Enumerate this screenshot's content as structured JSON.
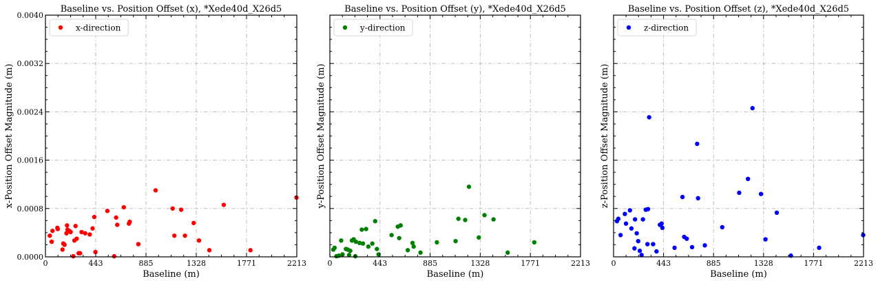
{
  "chart_data": [
    {
      "type": "scatter",
      "title": "Baseline vs. Position Offset (x), *Xede40d_X26d5",
      "xlabel": "Baseline (m)",
      "ylabel": "x-Position Offset Magnitude (m)",
      "xlim": [
        0,
        2213
      ],
      "ylim": [
        0,
        0.004
      ],
      "xticks": [
        "0",
        "443",
        "885",
        "1328",
        "1771",
        "2213"
      ],
      "yticks": [
        "0.0000",
        "0.0008",
        "0.0016",
        "0.0024",
        "0.0032",
        "0.0040"
      ],
      "show_yticklabels": true,
      "grid": true,
      "legend_position": "top-left",
      "series": [
        {
          "name": "x-direction",
          "color": "#ff0000",
          "points": [
            [
              38,
              0.00035
            ],
            [
              55,
              0.00025
            ],
            [
              62,
              0.00043
            ],
            [
              105,
              0.00048
            ],
            [
              108,
              0.00046
            ],
            [
              150,
              0.00012
            ],
            [
              158,
              0.00022
            ],
            [
              168,
              0.0002
            ],
            [
              185,
              0.00039
            ],
            [
              190,
              0.00052
            ],
            [
              194,
              0.00045
            ],
            [
              210,
              0.00043
            ],
            [
              222,
              0.00041
            ],
            [
              245,
              1e-05
            ],
            [
              255,
              0.00027
            ],
            [
              265,
              0.00051
            ],
            [
              275,
              0.0003
            ],
            [
              292,
              6e-05
            ],
            [
              305,
              6e-05
            ],
            [
              318,
              0.00041
            ],
            [
              350,
              0.00039
            ],
            [
              390,
              0.00037
            ],
            [
              415,
              0.00047
            ],
            [
              430,
              0.00066
            ],
            [
              440,
              8e-05
            ],
            [
              545,
              0.00076
            ],
            [
              605,
              1e-05
            ],
            [
              622,
              0.00065
            ],
            [
              632,
              0.00053
            ],
            [
              690,
              0.00082
            ],
            [
              735,
              0.00055
            ],
            [
              742,
              0.00058
            ],
            [
              818,
              0.00021
            ],
            [
              970,
              0.0011
            ],
            [
              1120,
              0.0008
            ],
            [
              1135,
              0.00035
            ],
            [
              1195,
              0.00078
            ],
            [
              1228,
              0.00035
            ],
            [
              1305,
              0.00056
            ],
            [
              1352,
              0.00027
            ],
            [
              1443,
              0.00011
            ],
            [
              1570,
              0.00086
            ],
            [
              1805,
              0.00011
            ],
            [
              2210,
              0.00098
            ]
          ]
        }
      ]
    },
    {
      "type": "scatter",
      "title": "Baseline vs. Position Offset (y), *Xede40d_X26d5",
      "xlabel": "Baseline (m)",
      "ylabel": "y-Position Offset Magnitude (m)",
      "xlim": [
        0,
        2213
      ],
      "ylim": [
        0,
        0.004
      ],
      "xticks": [
        "0",
        "443",
        "885",
        "1328",
        "1771",
        "2213"
      ],
      "yticks": [],
      "show_yticklabels": false,
      "grid": true,
      "legend_position": "top-left",
      "series": [
        {
          "name": "y-direction",
          "color": "#008000",
          "points": [
            [
              30,
              0.00012
            ],
            [
              42,
              0.00015
            ],
            [
              58,
              1e-05
            ],
            [
              80,
              2e-05
            ],
            [
              100,
              0.00027
            ],
            [
              112,
              4e-05
            ],
            [
              142,
              0.00013
            ],
            [
              158,
              0.00012
            ],
            [
              170,
              3e-05
            ],
            [
              180,
              0.0001
            ],
            [
              195,
              0.00027
            ],
            [
              210,
              0.00029
            ],
            [
              225,
              1e-05
            ],
            [
              230,
              0.00025
            ],
            [
              262,
              0.00023
            ],
            [
              282,
              0.00045
            ],
            [
              292,
              0.00022
            ],
            [
              320,
              0.00046
            ],
            [
              340,
              0.00017
            ],
            [
              375,
              0.00022
            ],
            [
              400,
              0.00059
            ],
            [
              415,
              0.00013
            ],
            [
              430,
              4e-05
            ],
            [
              545,
              0.00036
            ],
            [
              600,
              0.0005
            ],
            [
              612,
              0.00031
            ],
            [
              625,
              0.00052
            ],
            [
              688,
              0.00011
            ],
            [
              730,
              0.00023
            ],
            [
              740,
              0.00017
            ],
            [
              800,
              7e-05
            ],
            [
              945,
              0.00024
            ],
            [
              1110,
              0.00026
            ],
            [
              1135,
              0.00063
            ],
            [
              1195,
              0.00061
            ],
            [
              1228,
              0.00116
            ],
            [
              1315,
              0.00032
            ],
            [
              1365,
              0.00069
            ],
            [
              1445,
              0.00062
            ],
            [
              1570,
              7e-05
            ],
            [
              1805,
              0.00024
            ]
          ]
        }
      ]
    },
    {
      "type": "scatter",
      "title": "Baseline vs. Position Offset (z), *Xede40d_X26d5",
      "xlabel": "Baseline (m)",
      "ylabel": "z-Position Offset Magnitude (m)",
      "xlim": [
        0,
        2213
      ],
      "ylim": [
        0,
        0.004
      ],
      "xticks": [
        "0",
        "443",
        "885",
        "1328",
        "1771",
        "2213"
      ],
      "yticks": [],
      "show_yticklabels": false,
      "grid": true,
      "legend_position": "top-left",
      "series": [
        {
          "name": "z-direction",
          "color": "#0000ff",
          "points": [
            [
              30,
              0.00059
            ],
            [
              42,
              0.00063
            ],
            [
              62,
              0.00036
            ],
            [
              100,
              0.00071
            ],
            [
              110,
              0.00055
            ],
            [
              145,
              0.00077
            ],
            [
              158,
              0.00047
            ],
            [
              185,
              0.00014
            ],
            [
              190,
              0.00062
            ],
            [
              205,
              0.00039
            ],
            [
              218,
              0.00026
            ],
            [
              232,
              0.0001
            ],
            [
              248,
              3e-05
            ],
            [
              260,
              0.00062
            ],
            [
              285,
              0.00078
            ],
            [
              300,
              0.00021
            ],
            [
              305,
              0.00079
            ],
            [
              315,
              0.00231
            ],
            [
              350,
              0.00021
            ],
            [
              380,
              9e-05
            ],
            [
              410,
              0.00053
            ],
            [
              425,
              0.00055
            ],
            [
              432,
              0.00048
            ],
            [
              540,
              0.00015
            ],
            [
              610,
              0.00099
            ],
            [
              625,
              0.00033
            ],
            [
              648,
              0.0003
            ],
            [
              695,
              0.00016
            ],
            [
              740,
              0.00187
            ],
            [
              748,
              0.00097
            ],
            [
              808,
              0.00019
            ],
            [
              962,
              0.00049
            ],
            [
              1112,
              0.00106
            ],
            [
              1190,
              0.00129
            ],
            [
              1230,
              0.00246
            ],
            [
              1305,
              0.00104
            ],
            [
              1345,
              0.00029
            ],
            [
              1445,
              0.00073
            ],
            [
              1570,
              2e-05
            ],
            [
              1820,
              0.00015
            ],
            [
              2210,
              0.00036
            ]
          ]
        }
      ]
    }
  ]
}
